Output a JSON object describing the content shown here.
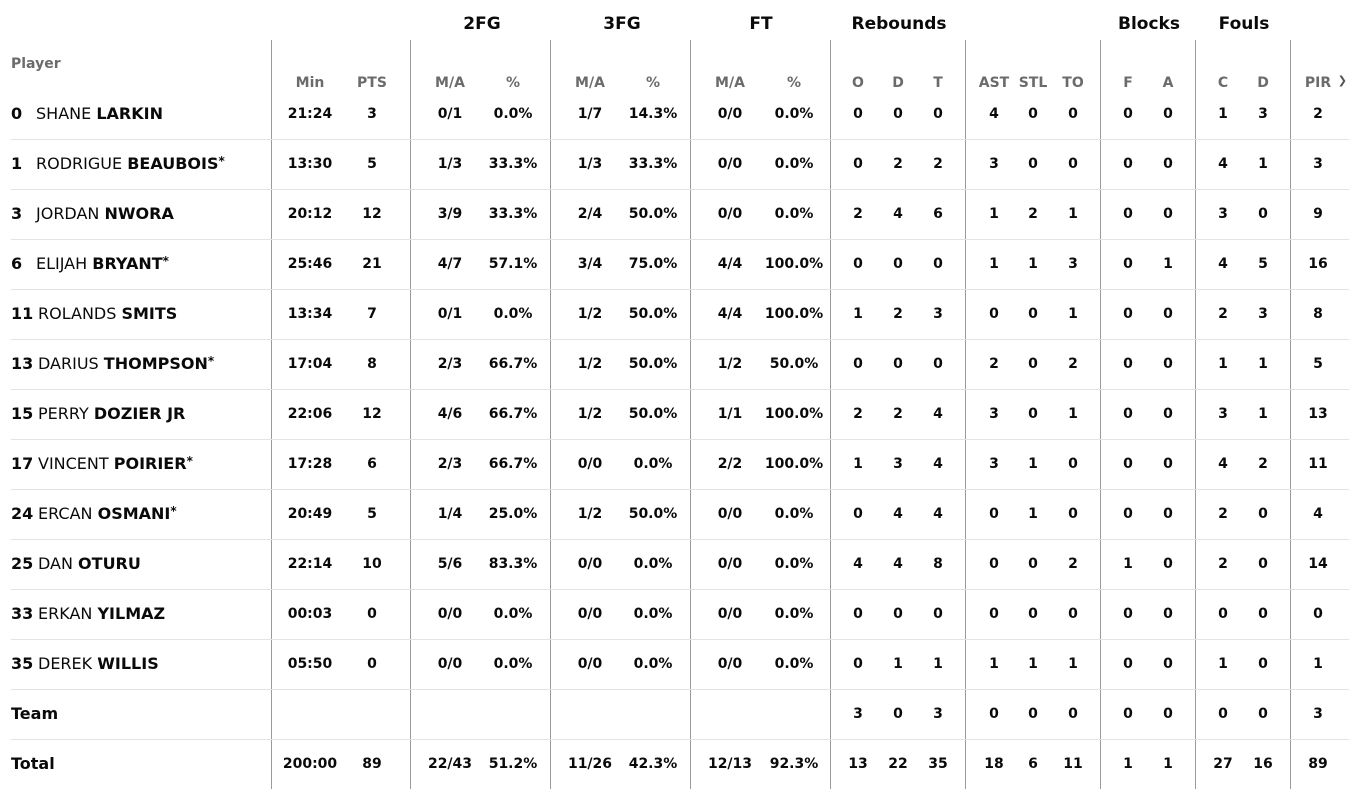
{
  "headers": {
    "player": "Player",
    "groups": [
      "2FG",
      "3FG",
      "FT",
      "Rebounds",
      "Blocks",
      "Fouls"
    ],
    "sub": [
      "Min",
      "PTS",
      "M/A",
      "%",
      "M/A",
      "%",
      "M/A",
      "%",
      "O",
      "D",
      "T",
      "AST",
      "STL",
      "TO",
      "F",
      "A",
      "C",
      "D",
      "PIR"
    ]
  },
  "rows": [
    {
      "num": "0",
      "first": "SHANE",
      "last": "LARKIN",
      "star": "",
      "stats": [
        "21:24",
        "3",
        "0/1",
        "0.0%",
        "1/7",
        "14.3%",
        "0/0",
        "0.0%",
        "0",
        "0",
        "0",
        "4",
        "0",
        "0",
        "0",
        "0",
        "1",
        "3",
        "2"
      ]
    },
    {
      "num": "1",
      "first": "RODRIGUE",
      "last": "BEAUBOIS",
      "star": "*",
      "stats": [
        "13:30",
        "5",
        "1/3",
        "33.3%",
        "1/3",
        "33.3%",
        "0/0",
        "0.0%",
        "0",
        "2",
        "2",
        "3",
        "0",
        "0",
        "0",
        "0",
        "4",
        "1",
        "3"
      ]
    },
    {
      "num": "3",
      "first": "JORDAN",
      "last": "NWORA",
      "star": "",
      "stats": [
        "20:12",
        "12",
        "3/9",
        "33.3%",
        "2/4",
        "50.0%",
        "0/0",
        "0.0%",
        "2",
        "4",
        "6",
        "1",
        "2",
        "1",
        "0",
        "0",
        "3",
        "0",
        "9"
      ]
    },
    {
      "num": "6",
      "first": "ELIJAH",
      "last": "BRYANT",
      "star": "*",
      "stats": [
        "25:46",
        "21",
        "4/7",
        "57.1%",
        "3/4",
        "75.0%",
        "4/4",
        "100.0%",
        "0",
        "0",
        "0",
        "1",
        "1",
        "3",
        "0",
        "1",
        "4",
        "5",
        "16"
      ]
    },
    {
      "num": "11",
      "first": "ROLANDS",
      "last": "SMITS",
      "star": "",
      "stats": [
        "13:34",
        "7",
        "0/1",
        "0.0%",
        "1/2",
        "50.0%",
        "4/4",
        "100.0%",
        "1",
        "2",
        "3",
        "0",
        "0",
        "1",
        "0",
        "0",
        "2",
        "3",
        "8"
      ]
    },
    {
      "num": "13",
      "first": "DARIUS",
      "last": "THOMPSON",
      "star": "*",
      "stats": [
        "17:04",
        "8",
        "2/3",
        "66.7%",
        "1/2",
        "50.0%",
        "1/2",
        "50.0%",
        "0",
        "0",
        "0",
        "2",
        "0",
        "2",
        "0",
        "0",
        "1",
        "1",
        "5"
      ]
    },
    {
      "num": "15",
      "first": "PERRY",
      "last": "DOZIER JR",
      "star": "",
      "stats": [
        "22:06",
        "12",
        "4/6",
        "66.7%",
        "1/2",
        "50.0%",
        "1/1",
        "100.0%",
        "2",
        "2",
        "4",
        "3",
        "0",
        "1",
        "0",
        "0",
        "3",
        "1",
        "13"
      ]
    },
    {
      "num": "17",
      "first": "VINCENT",
      "last": "POIRIER",
      "star": "*",
      "stats": [
        "17:28",
        "6",
        "2/3",
        "66.7%",
        "0/0",
        "0.0%",
        "2/2",
        "100.0%",
        "1",
        "3",
        "4",
        "3",
        "1",
        "0",
        "0",
        "0",
        "4",
        "2",
        "11"
      ]
    },
    {
      "num": "24",
      "first": "ERCAN",
      "last": "OSMANI",
      "star": "*",
      "stats": [
        "20:49",
        "5",
        "1/4",
        "25.0%",
        "1/2",
        "50.0%",
        "0/0",
        "0.0%",
        "0",
        "4",
        "4",
        "0",
        "1",
        "0",
        "0",
        "0",
        "2",
        "0",
        "4"
      ]
    },
    {
      "num": "25",
      "first": "DAN",
      "last": "OTURU",
      "star": "",
      "stats": [
        "22:14",
        "10",
        "5/6",
        "83.3%",
        "0/0",
        "0.0%",
        "0/0",
        "0.0%",
        "4",
        "4",
        "8",
        "0",
        "0",
        "2",
        "1",
        "0",
        "2",
        "0",
        "14"
      ]
    },
    {
      "num": "33",
      "first": "ERKAN",
      "last": "YILMAZ",
      "star": "",
      "stats": [
        "00:03",
        "0",
        "0/0",
        "0.0%",
        "0/0",
        "0.0%",
        "0/0",
        "0.0%",
        "0",
        "0",
        "0",
        "0",
        "0",
        "0",
        "0",
        "0",
        "0",
        "0",
        "0"
      ]
    },
    {
      "num": "35",
      "first": "DEREK",
      "last": "WILLIS",
      "star": "",
      "stats": [
        "05:50",
        "0",
        "0/0",
        "0.0%",
        "0/0",
        "0.0%",
        "0/0",
        "0.0%",
        "0",
        "1",
        "1",
        "1",
        "1",
        "1",
        "0",
        "0",
        "1",
        "0",
        "1"
      ]
    }
  ],
  "team": {
    "label": "Team",
    "stats": [
      "",
      "",
      "",
      "",
      "",
      "",
      "",
      "",
      "3",
      "0",
      "3",
      "0",
      "0",
      "0",
      "0",
      "0",
      "0",
      "0",
      "3"
    ]
  },
  "total": {
    "label": "Total",
    "stats": [
      "200:00",
      "89",
      "22/43",
      "51.2%",
      "11/26",
      "42.3%",
      "12/13",
      "92.3%",
      "13",
      "22",
      "35",
      "18",
      "6",
      "11",
      "1",
      "1",
      "27",
      "16",
      "89"
    ]
  },
  "icons": {
    "scroll": "chevron-right-icon"
  }
}
